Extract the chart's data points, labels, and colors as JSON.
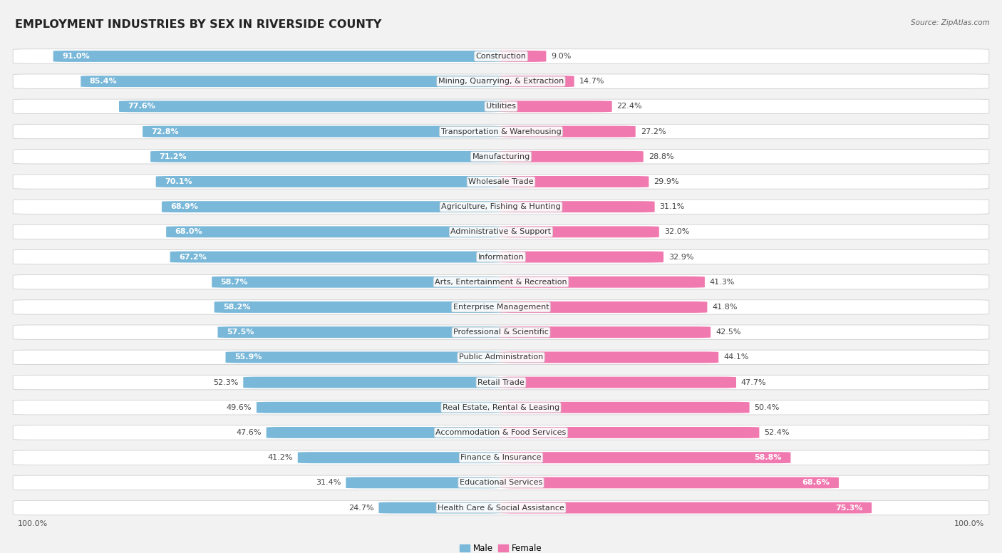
{
  "title": "EMPLOYMENT INDUSTRIES BY SEX IN RIVERSIDE COUNTY",
  "source": "Source: ZipAtlas.com",
  "industries": [
    {
      "name": "Construction",
      "male": 91.0,
      "female": 9.0
    },
    {
      "name": "Mining, Quarrying, & Extraction",
      "male": 85.4,
      "female": 14.7
    },
    {
      "name": "Utilities",
      "male": 77.6,
      "female": 22.4
    },
    {
      "name": "Transportation & Warehousing",
      "male": 72.8,
      "female": 27.2
    },
    {
      "name": "Manufacturing",
      "male": 71.2,
      "female": 28.8
    },
    {
      "name": "Wholesale Trade",
      "male": 70.1,
      "female": 29.9
    },
    {
      "name": "Agriculture, Fishing & Hunting",
      "male": 68.9,
      "female": 31.1
    },
    {
      "name": "Administrative & Support",
      "male": 68.0,
      "female": 32.0
    },
    {
      "name": "Information",
      "male": 67.2,
      "female": 32.9
    },
    {
      "name": "Arts, Entertainment & Recreation",
      "male": 58.7,
      "female": 41.3
    },
    {
      "name": "Enterprise Management",
      "male": 58.2,
      "female": 41.8
    },
    {
      "name": "Professional & Scientific",
      "male": 57.5,
      "female": 42.5
    },
    {
      "name": "Public Administration",
      "male": 55.9,
      "female": 44.1
    },
    {
      "name": "Retail Trade",
      "male": 52.3,
      "female": 47.7
    },
    {
      "name": "Real Estate, Rental & Leasing",
      "male": 49.6,
      "female": 50.4
    },
    {
      "name": "Accommodation & Food Services",
      "male": 47.6,
      "female": 52.4
    },
    {
      "name": "Finance & Insurance",
      "male": 41.2,
      "female": 58.8
    },
    {
      "name": "Educational Services",
      "male": 31.4,
      "female": 68.6
    },
    {
      "name": "Health Care & Social Assistance",
      "male": 24.7,
      "female": 75.3
    }
  ],
  "male_color": "#7ab8d9",
  "female_color": "#f07ab0",
  "bg_color": "#f2f2f2",
  "row_bg_color": "#ffffff",
  "row_border_color": "#d0d0d0",
  "title_fontsize": 11.5,
  "pct_fontsize": 8,
  "industry_fontsize": 8,
  "legend_fontsize": 8.5,
  "source_fontsize": 7.5,
  "axis_label_fontsize": 8
}
